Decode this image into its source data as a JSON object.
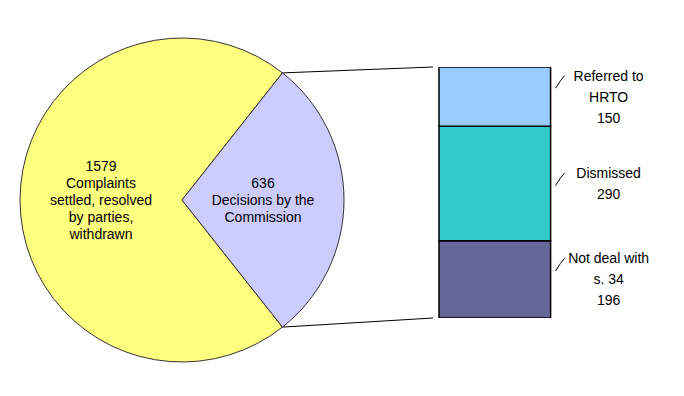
{
  "chart_data": [
    {
      "type": "pie",
      "categories": [
        "Complaints settled, resolved by parties, withdrawn",
        "Decisions by the Commission"
      ],
      "values": [
        1579,
        636
      ],
      "colors": [
        "#ffff80",
        "#ccccff"
      ],
      "data_labels": true
    },
    {
      "type": "bar",
      "stacked": true,
      "categories": [
        "Referred to HRTO",
        "Dismissed",
        "Not deal with s. 34"
      ],
      "values": [
        150,
        290,
        196
      ],
      "colors": [
        "#99ccff",
        "#33cccc",
        "#666699"
      ],
      "data_labels": true
    }
  ]
}
